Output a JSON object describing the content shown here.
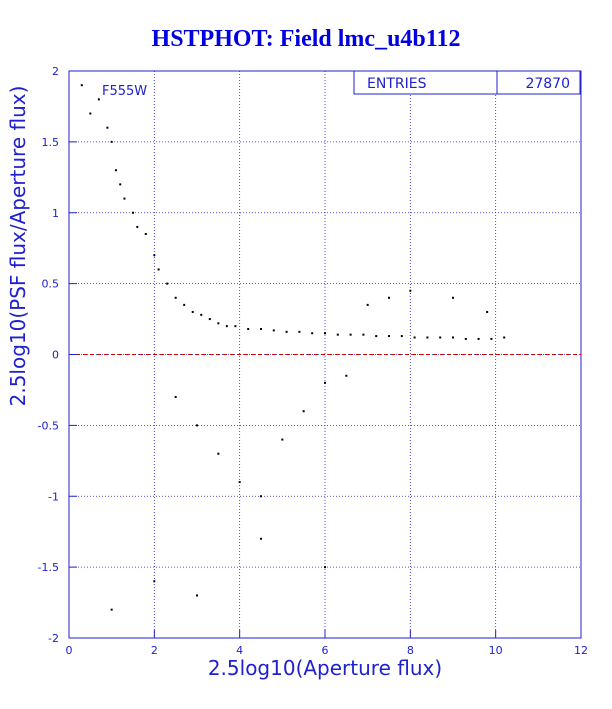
{
  "chart_data": {
    "type": "scatter",
    "title": "HSTPHOT: Field lmc_u4b112",
    "xlabel": "2.5log10(Aperture flux)",
    "ylabel": "2.5log10(PSF flux/Aperture flux)",
    "xlim": [
      0,
      12
    ],
    "ylim": [
      -2,
      2
    ],
    "x_ticks": [
      "0",
      "2",
      "4",
      "6",
      "8",
      "10",
      "12"
    ],
    "y_ticks": [
      "2",
      "1.5",
      "1",
      "0.5",
      "0",
      "-0.5",
      "-1",
      "-1.5",
      "-2"
    ],
    "grid": true,
    "filter_label": "F555W",
    "stats": {
      "entries_label": "ENTRIES",
      "entries_value": "27870"
    },
    "reference_line": {
      "y": 0,
      "color": "#cc0000",
      "style": "dashed"
    },
    "point_color": "#000000",
    "axis_color": "#2020d0",
    "grid_color": "#2020d0",
    "series": [
      {
        "x": [
          0.3,
          0.5,
          0.7,
          0.9,
          1.0,
          1.1,
          1.2,
          1.3,
          1.5,
          1.6,
          1.8,
          2.0,
          2.1,
          2.3,
          2.5,
          2.7,
          2.9,
          3.1,
          3.3,
          3.5,
          3.7,
          3.9,
          4.2,
          4.5,
          4.8,
          5.1,
          5.4,
          5.7,
          6.0,
          6.3,
          6.6,
          6.9,
          7.2,
          7.5,
          7.8,
          8.1,
          8.4,
          8.7,
          9.0,
          9.3,
          9.6,
          9.9,
          10.2,
          2.5,
          3.0,
          3.5,
          4.0,
          4.5,
          5.0,
          5.5,
          6.0,
          6.5,
          7.0,
          7.5,
          8.0,
          9.0,
          9.8,
          1.0,
          2.0,
          3.0,
          4.5,
          6.0
        ],
        "y": [
          1.9,
          1.7,
          1.8,
          1.6,
          1.5,
          1.3,
          1.2,
          1.1,
          1.0,
          0.9,
          0.85,
          0.7,
          0.6,
          0.5,
          0.4,
          0.35,
          0.3,
          0.28,
          0.25,
          0.22,
          0.2,
          0.2,
          0.18,
          0.18,
          0.17,
          0.16,
          0.16,
          0.15,
          0.15,
          0.14,
          0.14,
          0.14,
          0.13,
          0.13,
          0.13,
          0.12,
          0.12,
          0.12,
          0.12,
          0.11,
          0.11,
          0.11,
          0.12,
          -0.3,
          -0.5,
          -0.7,
          -0.9,
          -1.0,
          -0.6,
          -0.4,
          -0.2,
          -0.15,
          0.35,
          0.4,
          0.45,
          0.4,
          0.3,
          -1.8,
          -1.6,
          -1.7,
          -1.3,
          -1.5
        ]
      }
    ]
  }
}
